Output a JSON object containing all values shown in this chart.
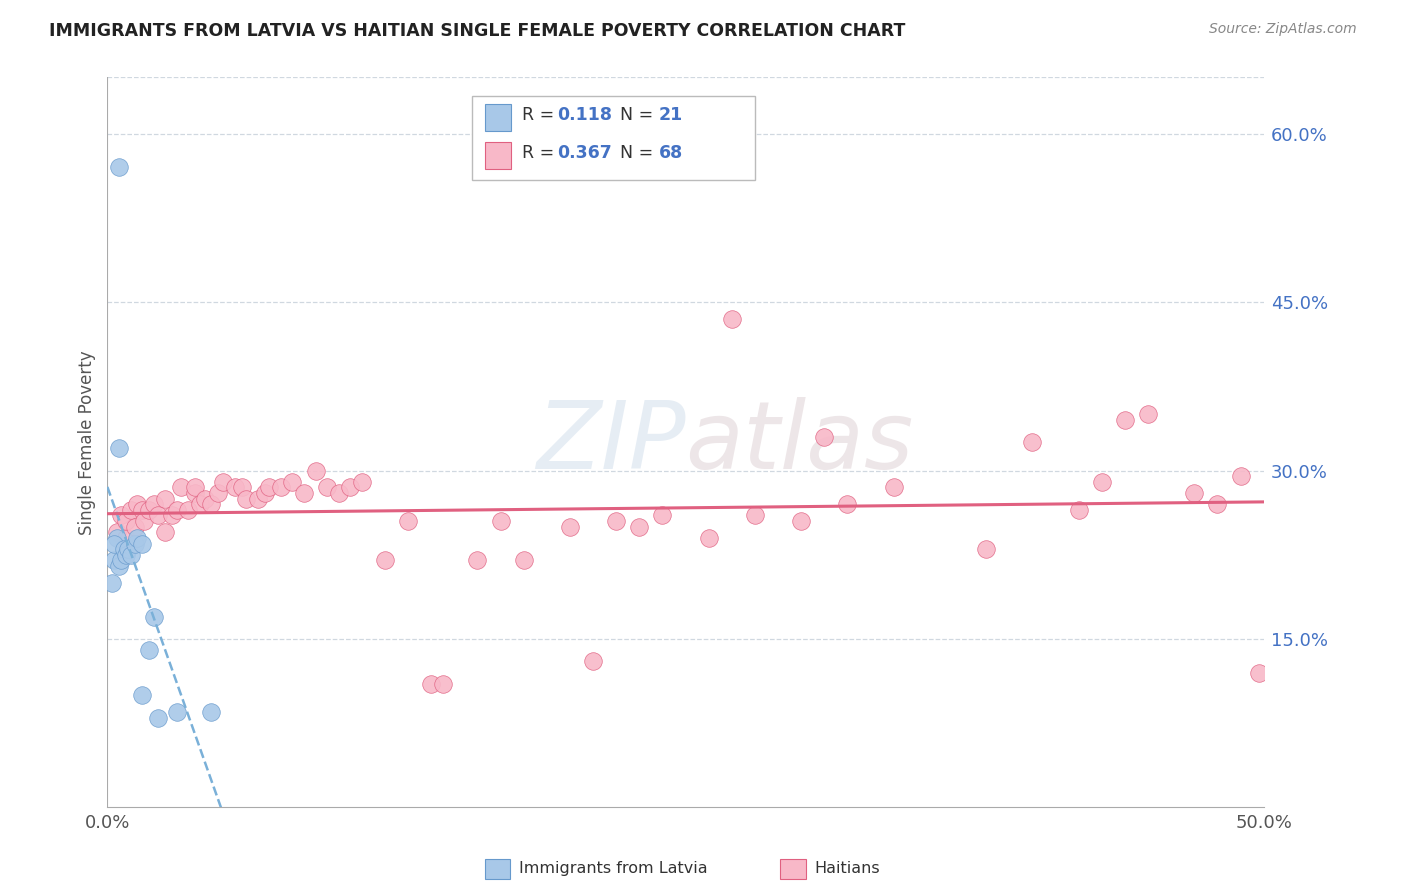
{
  "title": "IMMIGRANTS FROM LATVIA VS HAITIAN SINGLE FEMALE POVERTY CORRELATION CHART",
  "source": "Source: ZipAtlas.com",
  "ylabel": "Single Female Poverty",
  "legend_label1": "Immigrants from Latvia",
  "legend_label2": "Haitians",
  "r1": "0.118",
  "n1": "21",
  "r2": "0.367",
  "n2": "68",
  "xlim": [
    0.0,
    0.5
  ],
  "ylim": [
    0.0,
    0.65
  ],
  "xtick_positions": [
    0.0,
    0.1,
    0.2,
    0.3,
    0.4,
    0.5
  ],
  "xticklabels": [
    "0.0%",
    "",
    "",
    "",
    "",
    "50.0%"
  ],
  "yticks": [
    0.15,
    0.3,
    0.45,
    0.6
  ],
  "yticklabels": [
    "15.0%",
    "30.0%",
    "45.0%",
    "60.0%"
  ],
  "color_blue": "#a8c8e8",
  "color_pink": "#f8b8c8",
  "edge_blue": "#6699cc",
  "edge_pink": "#e06080",
  "line_blue_color": "#7ab0d8",
  "line_pink_color": "#e06080",
  "watermark": "ZIPatlas",
  "blue_x": [
    0.005,
    0.003,
    0.002,
    0.004,
    0.003,
    0.005,
    0.006,
    0.007,
    0.005,
    0.008,
    0.009,
    0.01,
    0.012,
    0.013,
    0.015,
    0.015,
    0.018,
    0.02,
    0.022,
    0.03,
    0.045
  ],
  "blue_y": [
    0.57,
    0.22,
    0.2,
    0.24,
    0.235,
    0.215,
    0.22,
    0.23,
    0.32,
    0.225,
    0.23,
    0.225,
    0.235,
    0.24,
    0.235,
    0.1,
    0.14,
    0.17,
    0.08,
    0.085,
    0.085
  ],
  "pink_x": [
    0.004,
    0.006,
    0.008,
    0.008,
    0.01,
    0.012,
    0.013,
    0.015,
    0.016,
    0.018,
    0.02,
    0.022,
    0.025,
    0.025,
    0.028,
    0.03,
    0.032,
    0.035,
    0.038,
    0.038,
    0.04,
    0.042,
    0.045,
    0.048,
    0.05,
    0.055,
    0.058,
    0.06,
    0.065,
    0.068,
    0.07,
    0.075,
    0.08,
    0.085,
    0.09,
    0.095,
    0.1,
    0.105,
    0.11,
    0.12,
    0.13,
    0.14,
    0.145,
    0.16,
    0.17,
    0.18,
    0.2,
    0.21,
    0.22,
    0.23,
    0.24,
    0.26,
    0.27,
    0.28,
    0.3,
    0.31,
    0.32,
    0.34,
    0.38,
    0.4,
    0.42,
    0.43,
    0.44,
    0.45,
    0.47,
    0.48,
    0.49,
    0.498
  ],
  "pink_y": [
    0.245,
    0.26,
    0.24,
    0.255,
    0.265,
    0.25,
    0.27,
    0.265,
    0.255,
    0.265,
    0.27,
    0.26,
    0.245,
    0.275,
    0.26,
    0.265,
    0.285,
    0.265,
    0.28,
    0.285,
    0.27,
    0.275,
    0.27,
    0.28,
    0.29,
    0.285,
    0.285,
    0.275,
    0.275,
    0.28,
    0.285,
    0.285,
    0.29,
    0.28,
    0.3,
    0.285,
    0.28,
    0.285,
    0.29,
    0.22,
    0.255,
    0.11,
    0.11,
    0.22,
    0.255,
    0.22,
    0.25,
    0.13,
    0.255,
    0.25,
    0.26,
    0.24,
    0.435,
    0.26,
    0.255,
    0.33,
    0.27,
    0.285,
    0.23,
    0.325,
    0.265,
    0.29,
    0.345,
    0.35,
    0.28,
    0.27,
    0.295,
    0.12
  ]
}
